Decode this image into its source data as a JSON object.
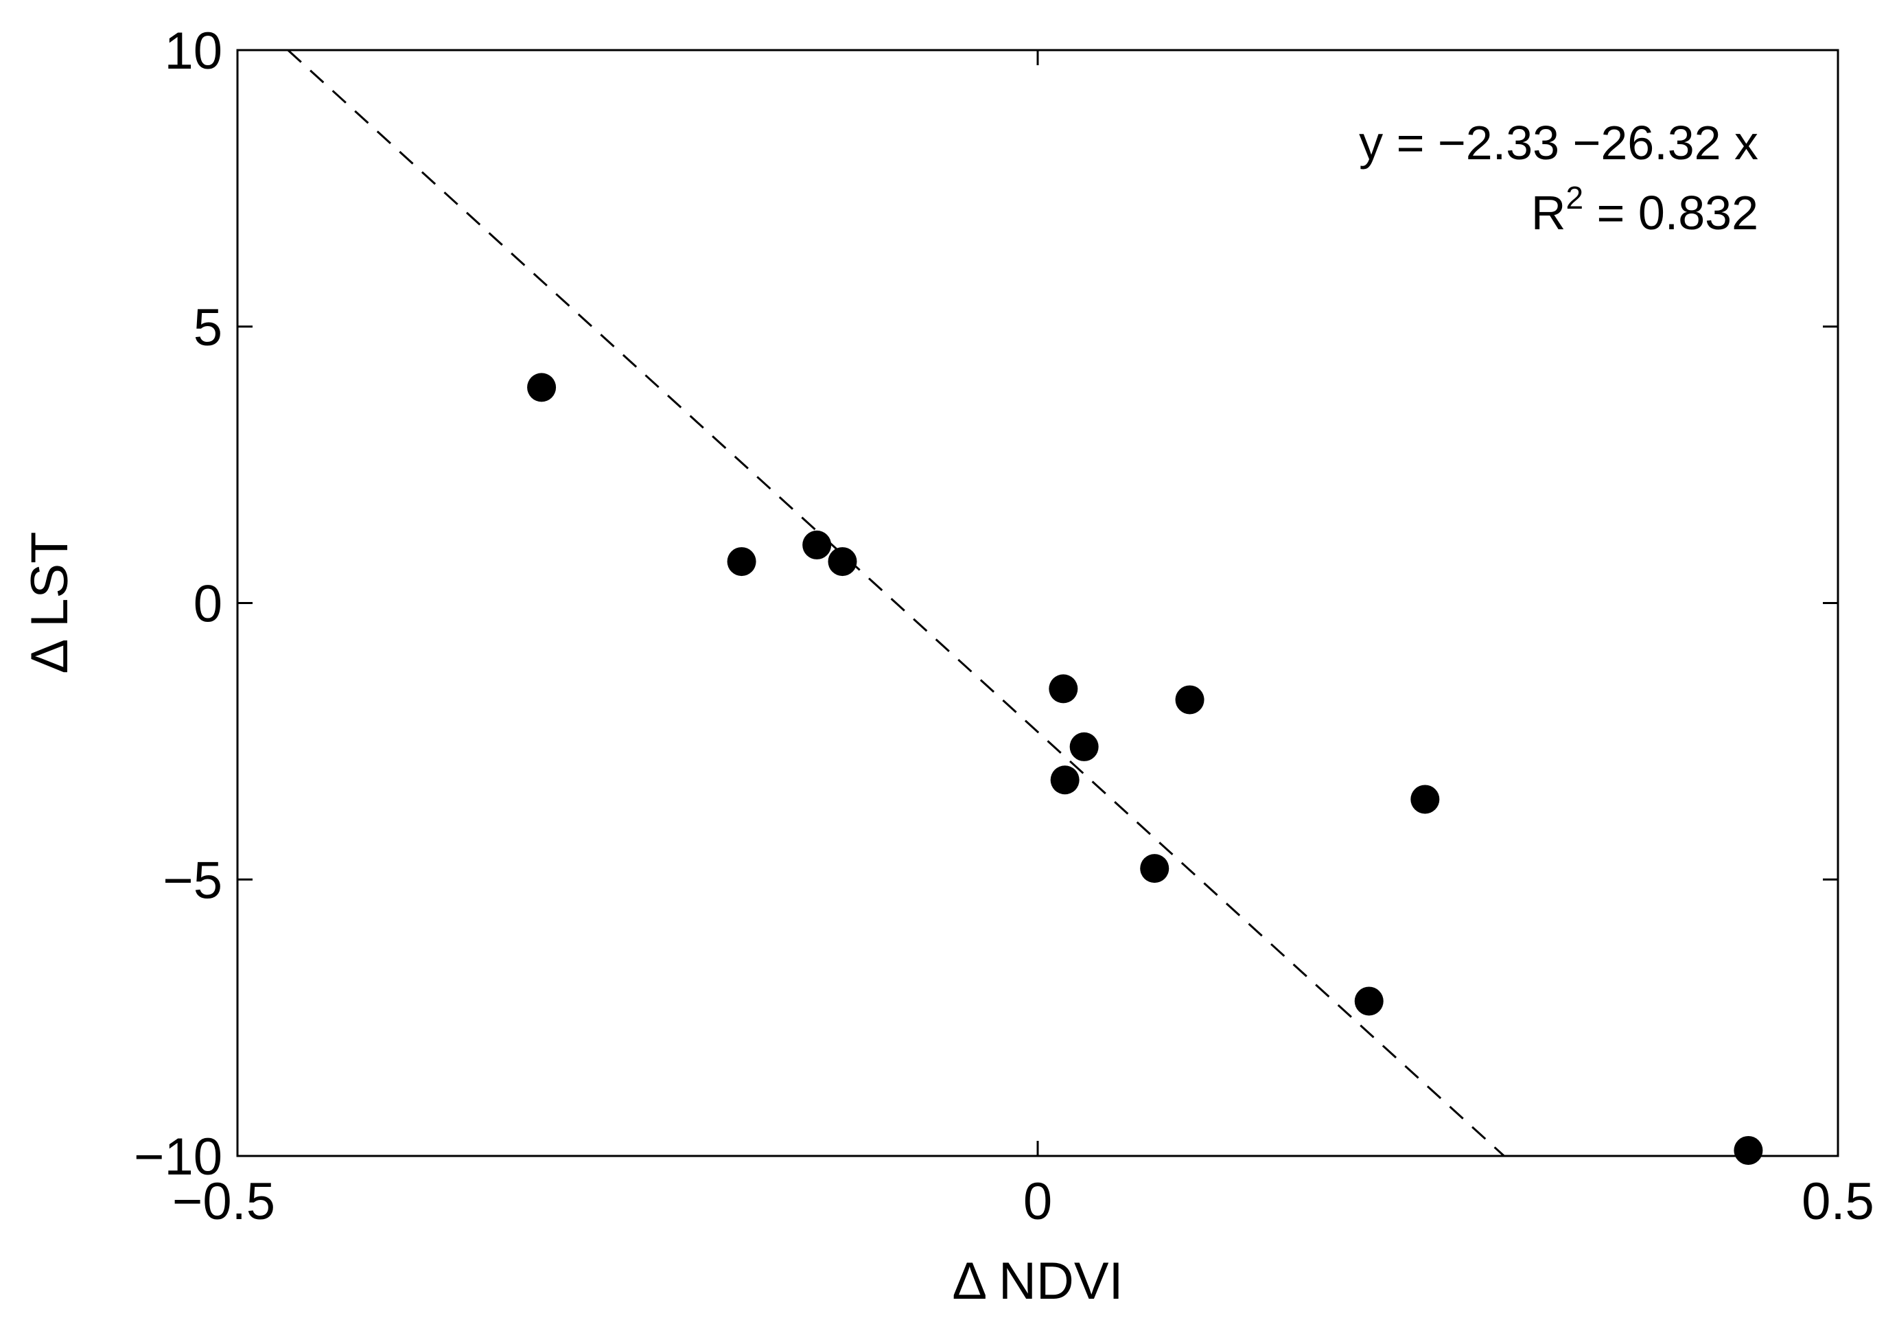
{
  "chart_data": {
    "type": "scatter",
    "title": "",
    "xlabel": "Δ NDVI",
    "ylabel": "Δ LST",
    "xlim": [
      -0.5,
      0.5
    ],
    "ylim": [
      -10,
      10
    ],
    "x_ticks": [
      -0.5,
      0,
      0.5
    ],
    "x_tick_labels": [
      "−0.5",
      "0",
      "0.5"
    ],
    "y_ticks": [
      -10,
      -5,
      0,
      5,
      10
    ],
    "y_tick_labels": [
      "−10",
      "−5",
      "0",
      "5",
      "10"
    ],
    "grid": false,
    "series": [
      {
        "x": [
          -0.31,
          -0.185,
          -0.138,
          -0.122,
          0.016,
          0.017,
          0.029,
          0.073,
          0.095,
          0.207,
          0.242,
          0.444
        ],
        "y": [
          3.9,
          0.75,
          1.05,
          0.75,
          -1.55,
          -3.2,
          -2.6,
          -4.8,
          -1.75,
          -7.2,
          -3.55,
          -9.9
        ],
        "color": "#000000",
        "marker": "filled-circle"
      }
    ],
    "fit_line": {
      "intercept": -2.33,
      "slope": -26.32,
      "style": "dashed",
      "color": "#000000"
    },
    "annotations": {
      "equation": "y = −2.33 −26.32 x",
      "r2_prefix": "R",
      "r2_superscript": "2",
      "r2_value": " = 0.832"
    }
  }
}
